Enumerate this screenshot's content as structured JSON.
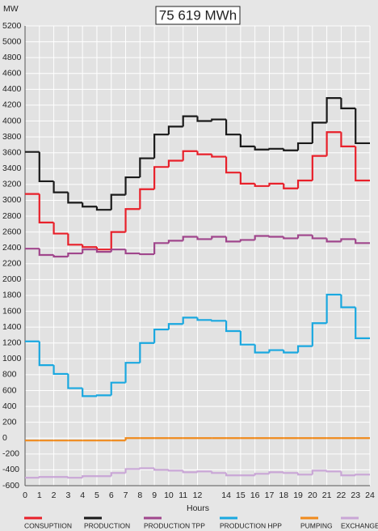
{
  "chart_data": {
    "type": "step",
    "title": "75 619 MWh",
    "y_label": "MW",
    "x_label": "Hours",
    "xlim": [
      0,
      24
    ],
    "xticks": [
      0,
      1,
      2,
      3,
      4,
      5,
      6,
      7,
      8,
      9,
      10,
      11,
      12,
      14,
      15,
      16,
      17,
      18,
      19,
      20,
      21,
      22,
      23,
      24
    ],
    "ylim": [
      -600,
      5200
    ],
    "yticks": [
      -600,
      -400,
      -200,
      0,
      200,
      400,
      600,
      800,
      1000,
      1200,
      1400,
      1600,
      1800,
      2000,
      2200,
      2400,
      2600,
      2800,
      3000,
      3200,
      3400,
      3600,
      3800,
      4000,
      4200,
      4400,
      4600,
      4800,
      5000,
      5200
    ],
    "grid": true,
    "series": [
      {
        "name": "CONSUPTIION",
        "color": "#e8202a",
        "values": [
          3080,
          2720,
          2580,
          2440,
          2410,
          2380,
          2600,
          2890,
          3140,
          3420,
          3500,
          3620,
          3580,
          3550,
          3350,
          3210,
          3180,
          3210,
          3150,
          3250,
          3560,
          3860,
          3680,
          3250
        ]
      },
      {
        "name": "PRODUCTION",
        "color": "#1a1a1a",
        "values": [
          3610,
          3240,
          3100,
          2970,
          2920,
          2880,
          3070,
          3290,
          3530,
          3830,
          3930,
          4060,
          4000,
          4020,
          3830,
          3680,
          3640,
          3650,
          3630,
          3720,
          3980,
          4290,
          4160,
          3720
        ]
      },
      {
        "name": "PRODUCTION TPP",
        "color": "#a0468c",
        "values": [
          2390,
          2310,
          2290,
          2330,
          2380,
          2350,
          2380,
          2330,
          2320,
          2460,
          2490,
          2540,
          2510,
          2540,
          2480,
          2500,
          2550,
          2540,
          2520,
          2560,
          2520,
          2480,
          2510,
          2460
        ]
      },
      {
        "name": "PRODUCTION HPP",
        "color": "#1aa8e0",
        "values": [
          1220,
          920,
          810,
          630,
          530,
          540,
          700,
          950,
          1200,
          1370,
          1440,
          1520,
          1490,
          1480,
          1350,
          1180,
          1080,
          1110,
          1080,
          1160,
          1450,
          1810,
          1650,
          1260
        ]
      },
      {
        "name": "PUMPING",
        "color": "#f08a1c",
        "values": [
          -30,
          -30,
          -30,
          -30,
          -30,
          -30,
          -30,
          0,
          0,
          0,
          0,
          0,
          0,
          0,
          0,
          0,
          0,
          0,
          0,
          0,
          0,
          0,
          0,
          0
        ]
      },
      {
        "name": "EXCHANGE",
        "color": "#c9a6d6",
        "values": [
          -500,
          -490,
          -490,
          -500,
          -480,
          -480,
          -440,
          -390,
          -380,
          -400,
          -410,
          -430,
          -420,
          -440,
          -470,
          -470,
          -450,
          -430,
          -440,
          -460,
          -410,
          -420,
          -470,
          -460
        ]
      }
    ]
  }
}
